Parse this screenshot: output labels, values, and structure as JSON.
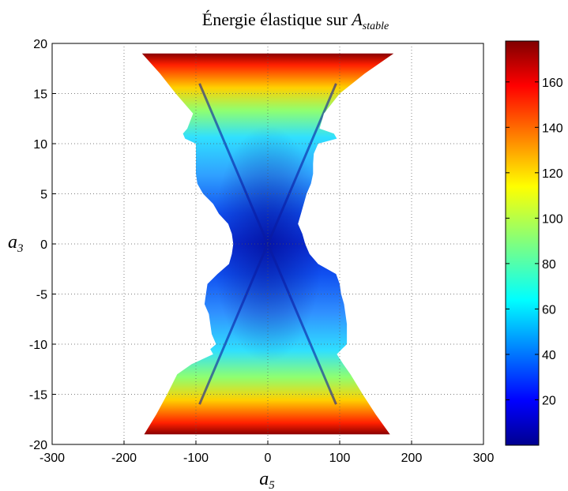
{
  "chart_data": {
    "type": "heatmap",
    "title": "Énergie élastique sur ",
    "title_math": "A",
    "title_math_subscript": "stable",
    "xlabel": "a",
    "xlabel_subscript": "5",
    "ylabel": "a",
    "ylabel_subscript": "3",
    "xlim": [
      -300,
      300
    ],
    "ylim": [
      -20,
      20
    ],
    "x_ticks": [
      -300,
      -200,
      -100,
      0,
      100,
      200,
      300
    ],
    "x_tick_labels": [
      "-300",
      "-200",
      "-100",
      "0",
      "100",
      "200",
      "300"
    ],
    "y_ticks": [
      -20,
      -15,
      -10,
      -5,
      0,
      5,
      10,
      15,
      20
    ],
    "y_tick_labels": [
      "-20",
      "-15",
      "-10",
      "-5",
      "0",
      "5",
      "10",
      "15",
      "20"
    ],
    "grid": true,
    "colorbar": {
      "min": 0,
      "max": 178,
      "ticks": [
        20,
        40,
        60,
        80,
        100,
        120,
        140,
        160
      ],
      "tick_labels": [
        "20",
        "40",
        "60",
        "80",
        "100",
        "120",
        "140",
        "160"
      ],
      "colormap": "jet"
    },
    "region": {
      "description_values": "stable region boundary, right half (x in data units at given y); symmetric in x",
      "y": [
        19,
        17,
        15,
        13,
        11.5,
        11,
        10.5,
        10,
        9,
        8,
        7,
        6,
        5,
        4,
        3,
        2,
        1,
        0,
        -1,
        -2,
        -3,
        -4,
        -5,
        -6,
        -7,
        -8,
        -9,
        -10,
        -10.5,
        -11,
        -12,
        -13,
        -15,
        -17,
        -19
      ],
      "x_right": [
        175,
        135,
        100,
        78,
        72,
        92,
        96,
        70,
        64,
        63,
        63,
        60,
        54,
        50,
        46,
        42,
        48,
        52,
        58,
        70,
        95,
        100,
        102,
        106,
        108,
        110,
        110,
        110,
        103,
        96,
        105,
        115,
        132,
        150,
        170
      ],
      "x_left": [
        -175,
        -150,
        -128,
        -104,
        -112,
        -118,
        -115,
        -100,
        -100,
        -100,
        -100,
        -98,
        -90,
        -76,
        -68,
        -55,
        -50,
        -48,
        -50,
        -54,
        -70,
        -84,
        -86,
        -88,
        -82,
        -80,
        -78,
        -72,
        -80,
        -76,
        -106,
        -126,
        -140,
        -155,
        -172
      ]
    }
  }
}
